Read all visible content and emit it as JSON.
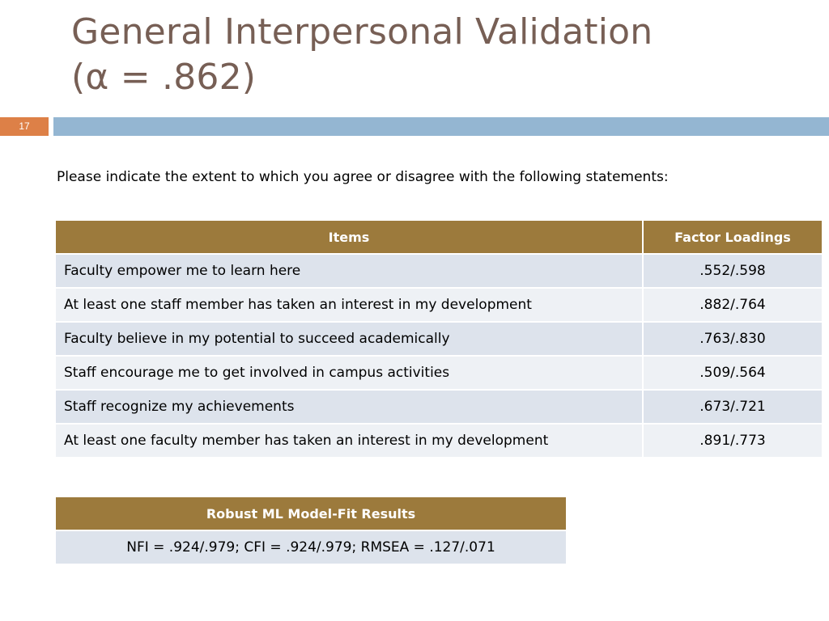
{
  "slide": {
    "title_line1": "General Interpersonal Validation",
    "title_line2": "(α = .862)",
    "number": "17",
    "colors": {
      "title": "#775f55",
      "number_bg": "#dd8047",
      "bar": "#94b6d2",
      "header_bg": "#9c7a3c",
      "row_odd": "#dde3ec",
      "row_even": "#eef1f5"
    }
  },
  "intro": "Please indicate the extent to which you agree or disagree with the following statements:",
  "items_table": {
    "headers": [
      "Items",
      "Factor Loadings"
    ],
    "rows": [
      [
        "Faculty empower me to learn here",
        ".552/.598"
      ],
      [
        "At least one staff member has taken an interest in my development",
        ".882/.764"
      ],
      [
        "Faculty believe in my potential to succeed academically",
        ".763/.830"
      ],
      [
        "Staff encourage me to get involved in campus activities",
        ".509/.564"
      ],
      [
        "Staff recognize my achievements",
        ".673/.721"
      ],
      [
        "At least one faculty member has taken an interest in my development",
        ".891/.773"
      ]
    ]
  },
  "fit_table": {
    "header": "Robust ML Model-Fit Results",
    "value": "NFI = .924/.979; CFI = .924/.979; RMSEA = .127/.071"
  }
}
